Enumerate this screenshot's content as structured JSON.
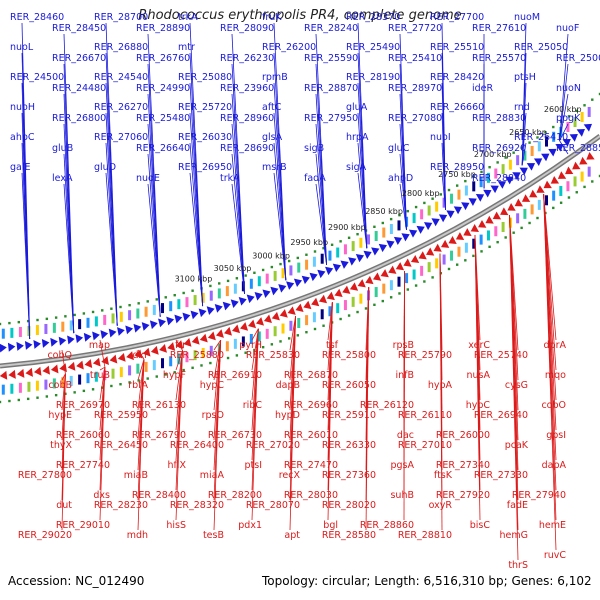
{
  "title": "Rhodococcus erythropolis PR4, complete genome",
  "footer": {
    "accession": "Accession: NC_012490",
    "summary": "Topology: circular; Length: 6,516,310 bp; Genes: 6,102"
  },
  "colors": {
    "forward": "#1a1adc",
    "reverse": "#dc1a1a",
    "backbone": "#888888",
    "tick": "#2a8a2a"
  },
  "ruler": [
    "2600 kbp",
    "2650 kbp",
    "2700 kbp",
    "2750 kbp",
    "2800 kbp",
    "2850 kbp",
    "2900 kbp",
    "2950 kbp",
    "3000 kbp",
    "3050 kbp",
    "3100 kbp"
  ],
  "forward_labels": [
    "RER_28460",
    "RER_28450",
    "RER_28700",
    "RER_28890",
    "trkA",
    "RER_28090",
    "fruK",
    "RER_28240",
    "RER_28370",
    "RER_27720",
    "RER_27700",
    "RER_27610",
    "nuoM",
    "nuoF",
    "nuoL",
    "RER_26670",
    "RER_26880",
    "RER_26760",
    "mtr",
    "RER_26230",
    "RER_26200",
    "RER_25590",
    "RER_25490",
    "RER_25410",
    "RER_25510",
    "RER_25570",
    "RER_25050",
    "RER_25000",
    "RER_24500",
    "RER_24480",
    "RER_24540",
    "RER_24990",
    "RER_25080",
    "RER_23960",
    "rpmB",
    "RER_28870",
    "RER_28190",
    "RER_28970",
    "RER_28420",
    "ideR",
    "ptsH",
    "nuoN",
    "nuoH",
    "RER_26800",
    "RER_26270",
    "RER_25480",
    "RER_25720",
    "RER_28960",
    "aftC",
    "RER_27950",
    "gluA",
    "RER_27080",
    "RER_26660",
    "RER_28830",
    "rnd",
    "ppgK",
    "ahpC",
    "gluB",
    "RER_27060",
    "RER_26640",
    "RER_26030",
    "RER_28690",
    "glsA",
    "sigB",
    "hrpA",
    "gluC",
    "nuoI",
    "RER_26920",
    "RER_26410",
    "RER_28850",
    "galE",
    "lexA",
    "gluD",
    "nuoE",
    "RER_26950",
    "trkA",
    "msrB",
    "fadA",
    "sigA",
    "ahpD",
    "RER_28950",
    "RER_28840"
  ],
  "reverse_labels": [
    "dprA",
    "RER_25740",
    "xerC",
    "RER_25790",
    "rpsB",
    "RER_25800",
    "tsf",
    "RER_25830",
    "pyrH",
    "RER_25880",
    "frr",
    "dxr",
    "map",
    "cobQ",
    "mqo",
    "cysG",
    "nusA",
    "hypA",
    "infB",
    "RER_26050",
    "RER_26870",
    "dapB",
    "RER_26910",
    "hypC",
    "hypF",
    "rbfA",
    "truB",
    "cobB",
    "cobO",
    "RER_26940",
    "hypC",
    "RER_26110",
    "RER_26120",
    "RER_25910",
    "RER_26960",
    "hypD",
    "ribC",
    "rpsO",
    "RER_26130",
    "RER_25950",
    "RER_26970",
    "hypE",
    "gpsI",
    "pcaK",
    "RER_26000",
    "RER_27010",
    "dac",
    "RER_26330",
    "RER_26010",
    "RER_27020",
    "RER_26730",
    "RER_26400",
    "RER_26790",
    "RER_26450",
    "RER_26060",
    "thyX",
    "dapA",
    "RER_27330",
    "RER_27340",
    "ftsK",
    "pgsA",
    "RER_27360",
    "RER_27470",
    "recX",
    "ptsI",
    "miaA",
    "hflX",
    "miaB",
    "RER_27740",
    "RER_27800",
    "RER_27940",
    "fadE",
    "RER_27920",
    "oxyR",
    "suhB",
    "RER_28020",
    "RER_28030",
    "RER_28070",
    "RER_28200",
    "RER_28320",
    "RER_28400",
    "RER_28230",
    "dxs",
    "dut",
    "hemE",
    "hemG",
    "bisC",
    "RER_28810",
    "RER_28860",
    "RER_28580",
    "bgl",
    "apt",
    "pdx1",
    "tesB",
    "hisS",
    "mdh",
    "RER_29010",
    "RER_29020",
    "ruvC",
    "thrS"
  ]
}
